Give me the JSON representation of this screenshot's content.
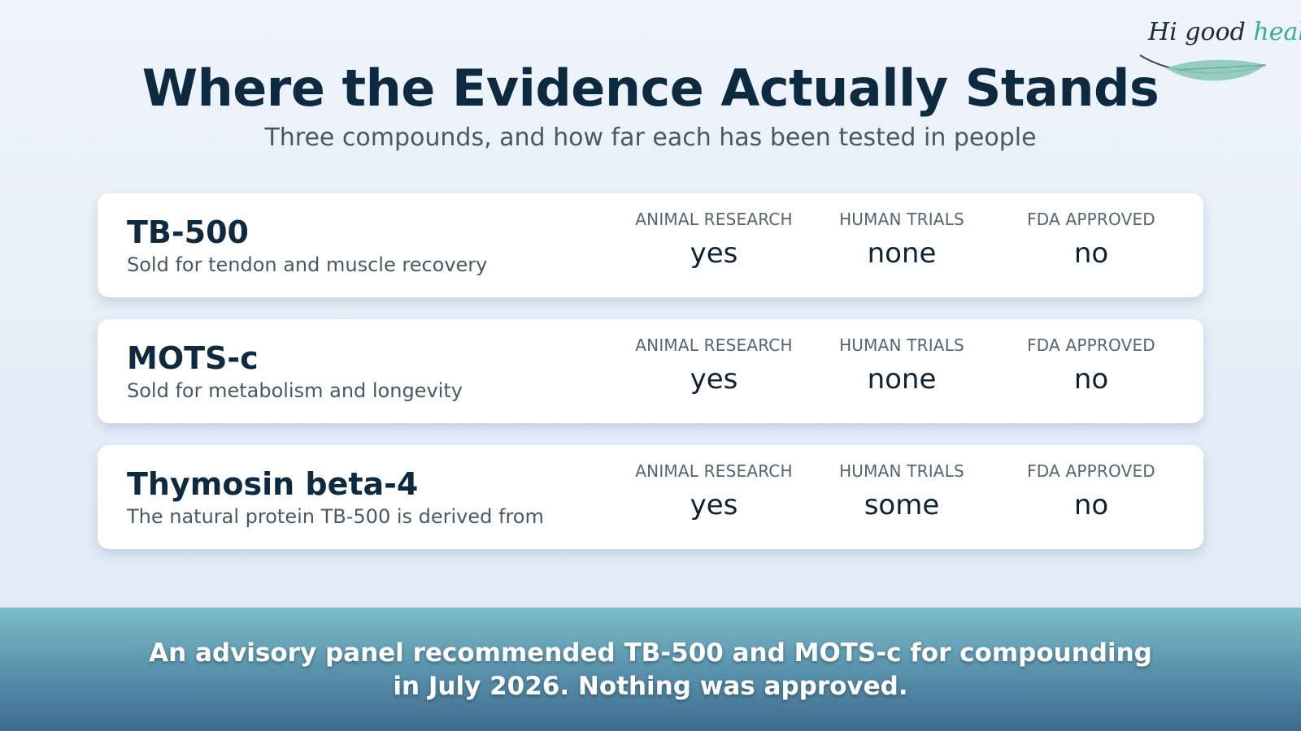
{
  "brand": {
    "logo_hi": "Hi good",
    "logo_health": "health"
  },
  "header": {
    "title": "Where the Evidence Actually Stands",
    "subtitle": "Three compounds, and how far each has been tested in people"
  },
  "columns": [
    "ANIMAL RESEARCH",
    "HUMAN TRIALS",
    "FDA APPROVED"
  ],
  "compounds": [
    {
      "name": "TB-500",
      "description": "Sold for tendon and muscle recovery",
      "animal_research": "yes",
      "human_trials": "none",
      "fda_approved": "no"
    },
    {
      "name": "MOTS-c",
      "description": "Sold for metabolism and longevity",
      "animal_research": "yes",
      "human_trials": "none",
      "fda_approved": "no"
    },
    {
      "name": "Thymosin beta-4",
      "description": "The natural protein TB-500 is derived from",
      "animal_research": "yes",
      "human_trials": "some",
      "fda_approved": "no"
    }
  ],
  "caption": {
    "line1": "An advisory panel recommended TB-500 and MOTS-c for compounding",
    "line2": "in July 2026. Nothing was approved."
  },
  "colors": {
    "title": "#0e2a40",
    "accent": "#3aa9a5",
    "banner_top": "#7cbcc8",
    "banner_bottom": "#3e6b8f"
  },
  "icons": {
    "logo": "leaf-logo-icon"
  }
}
